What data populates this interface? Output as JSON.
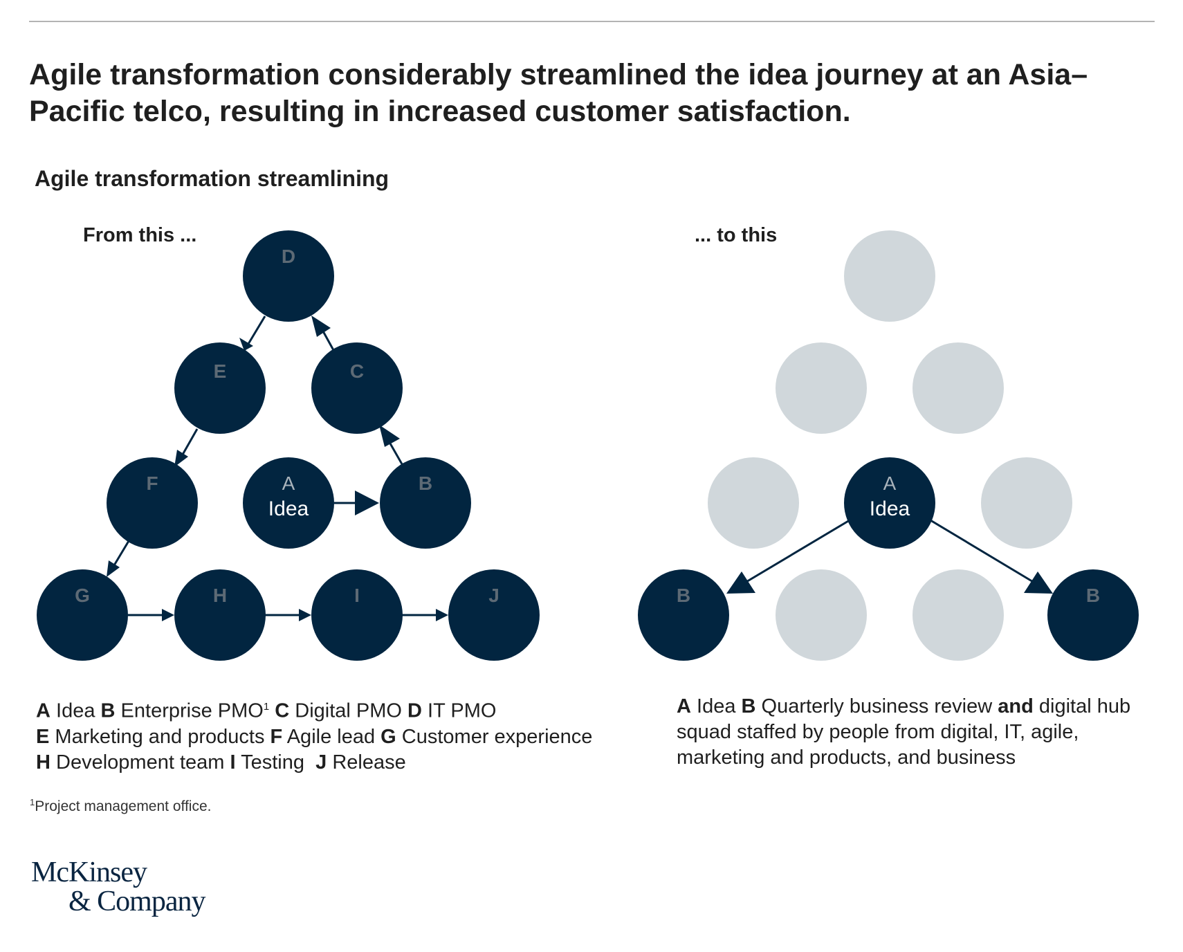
{
  "headline": "Agile transformation considerably streamlined the idea journey at an Asia–Pacific telco, resulting in increased customer satisfaction.",
  "subhead": "Agile transformation streamlining",
  "colors": {
    "dark_node": "#022540",
    "light_node": "#d0d7db",
    "label_on_dark": "#5d6a75"
  },
  "from_panel": {
    "label": "From this ...",
    "nodes": {
      "A": {
        "letter": "A",
        "sub": "Idea"
      },
      "B": {
        "letter": "B"
      },
      "C": {
        "letter": "C"
      },
      "D": {
        "letter": "D"
      },
      "E": {
        "letter": "E"
      },
      "F": {
        "letter": "F"
      },
      "G": {
        "letter": "G"
      },
      "H": {
        "letter": "H"
      },
      "I": {
        "letter": "I"
      },
      "J": {
        "letter": "J"
      }
    },
    "legend": [
      {
        "key": "A",
        "text": "Idea"
      },
      {
        "key": "B",
        "text": "Enterprise PMO",
        "sup": "1"
      },
      {
        "key": "C",
        "text": "Digital PMO"
      },
      {
        "key": "D",
        "text": "IT PMO"
      },
      {
        "key": "E",
        "text": "Marketing and products"
      },
      {
        "key": "F",
        "text": "Agile lead"
      },
      {
        "key": "G",
        "text": "Customer experience"
      },
      {
        "key": "H",
        "text": "Development team"
      },
      {
        "key": "I",
        "text": "Testing"
      },
      {
        "key": "J",
        "text": "Release"
      }
    ]
  },
  "to_panel": {
    "label": "... to this",
    "nodes": {
      "A": {
        "letter": "A",
        "sub": "Idea"
      },
      "B_left": {
        "letter": "B"
      },
      "B_right": {
        "letter": "B"
      }
    },
    "legend": {
      "a_key": "A",
      "a_text": "Idea",
      "b_key": "B",
      "b_text_1": "Quarterly business review",
      "b_and": "and",
      "b_text_2": "digital hub squad staffed by people from digital, IT, agile, marketing and products, and business"
    }
  },
  "footnote": {
    "sup": "1",
    "text": "Project management office."
  },
  "logo": {
    "line1": "McKinsey",
    "line2": "& Company"
  }
}
